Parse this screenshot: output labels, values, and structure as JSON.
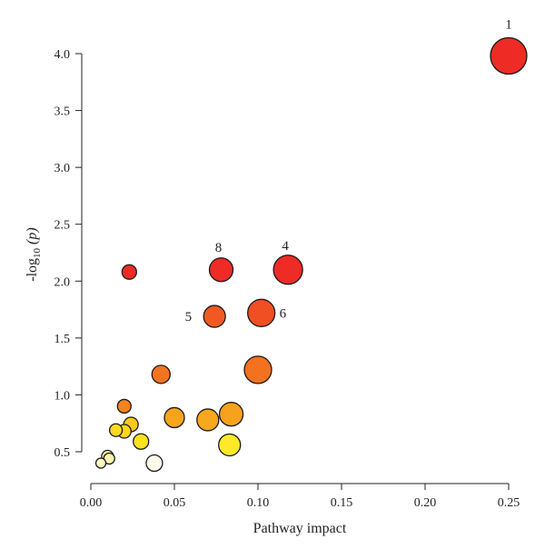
{
  "chart_data": {
    "type": "scatter",
    "xlabel": "Pathway impact",
    "ylabel_prefix": "-log",
    "ylabel_sub": "10",
    "ylabel_suffix": " (p)",
    "xlim": [
      0.0,
      0.25
    ],
    "ylim": [
      0.4,
      4.0
    ],
    "xticks": [
      0.0,
      0.05,
      0.1,
      0.15,
      0.2,
      0.25
    ],
    "xtick_labels": [
      "0.00",
      "0.05",
      "0.10",
      "0.15",
      "0.20",
      "0.25"
    ],
    "yticks": [
      0.5,
      1.0,
      1.5,
      2.0,
      2.5,
      3.0,
      3.5,
      4.0
    ],
    "ytick_labels": [
      "0.5",
      "1.0",
      "1.5",
      "2.0",
      "2.5",
      "3.0",
      "3.5",
      "4.0"
    ],
    "grid": false,
    "points": [
      {
        "x": 0.25,
        "y": 3.98,
        "size": 20,
        "color": "#ee2b24",
        "label": "1"
      },
      {
        "x": 0.118,
        "y": 2.1,
        "size": 16,
        "color": "#ee2b24",
        "label": "4"
      },
      {
        "x": 0.078,
        "y": 2.1,
        "size": 13,
        "color": "#ee2b24",
        "label": "8"
      },
      {
        "x": 0.023,
        "y": 2.08,
        "size": 8,
        "color": "#ee2b24",
        "label": ""
      },
      {
        "x": 0.102,
        "y": 1.72,
        "size": 15,
        "color": "#f04e23",
        "label": "6"
      },
      {
        "x": 0.074,
        "y": 1.69,
        "size": 12,
        "color": "#f05a22",
        "label": "5"
      },
      {
        "x": 0.1,
        "y": 1.22,
        "size": 15,
        "color": "#f3711f",
        "label": ""
      },
      {
        "x": 0.042,
        "y": 1.18,
        "size": 10,
        "color": "#f3731f",
        "label": ""
      },
      {
        "x": 0.02,
        "y": 0.9,
        "size": 7.5,
        "color": "#f58220",
        "label": ""
      },
      {
        "x": 0.084,
        "y": 0.83,
        "size": 13,
        "color": "#f7a21d",
        "label": ""
      },
      {
        "x": 0.05,
        "y": 0.8,
        "size": 11,
        "color": "#f7a41d",
        "label": ""
      },
      {
        "x": 0.07,
        "y": 0.78,
        "size": 12,
        "color": "#f8a81c",
        "label": ""
      },
      {
        "x": 0.024,
        "y": 0.74,
        "size": 8,
        "color": "#fbc91c",
        "label": ""
      },
      {
        "x": 0.015,
        "y": 0.69,
        "size": 7,
        "color": "#fcd81e",
        "label": ""
      },
      {
        "x": 0.02,
        "y": 0.68,
        "size": 7.5,
        "color": "#fdd61f",
        "label": ""
      },
      {
        "x": 0.03,
        "y": 0.59,
        "size": 8.5,
        "color": "#fde11f",
        "label": ""
      },
      {
        "x": 0.083,
        "y": 0.56,
        "size": 12,
        "color": "#fde92a",
        "label": ""
      },
      {
        "x": 0.01,
        "y": 0.46,
        "size": 6.5,
        "color": "#fdf1a0",
        "label": ""
      },
      {
        "x": 0.011,
        "y": 0.44,
        "size": 6,
        "color": "#fdf4b0",
        "label": ""
      },
      {
        "x": 0.006,
        "y": 0.4,
        "size": 5.5,
        "color": "#fdf6c2",
        "label": ""
      },
      {
        "x": 0.038,
        "y": 0.4,
        "size": 9,
        "color": "#fffbea",
        "label": ""
      }
    ]
  }
}
